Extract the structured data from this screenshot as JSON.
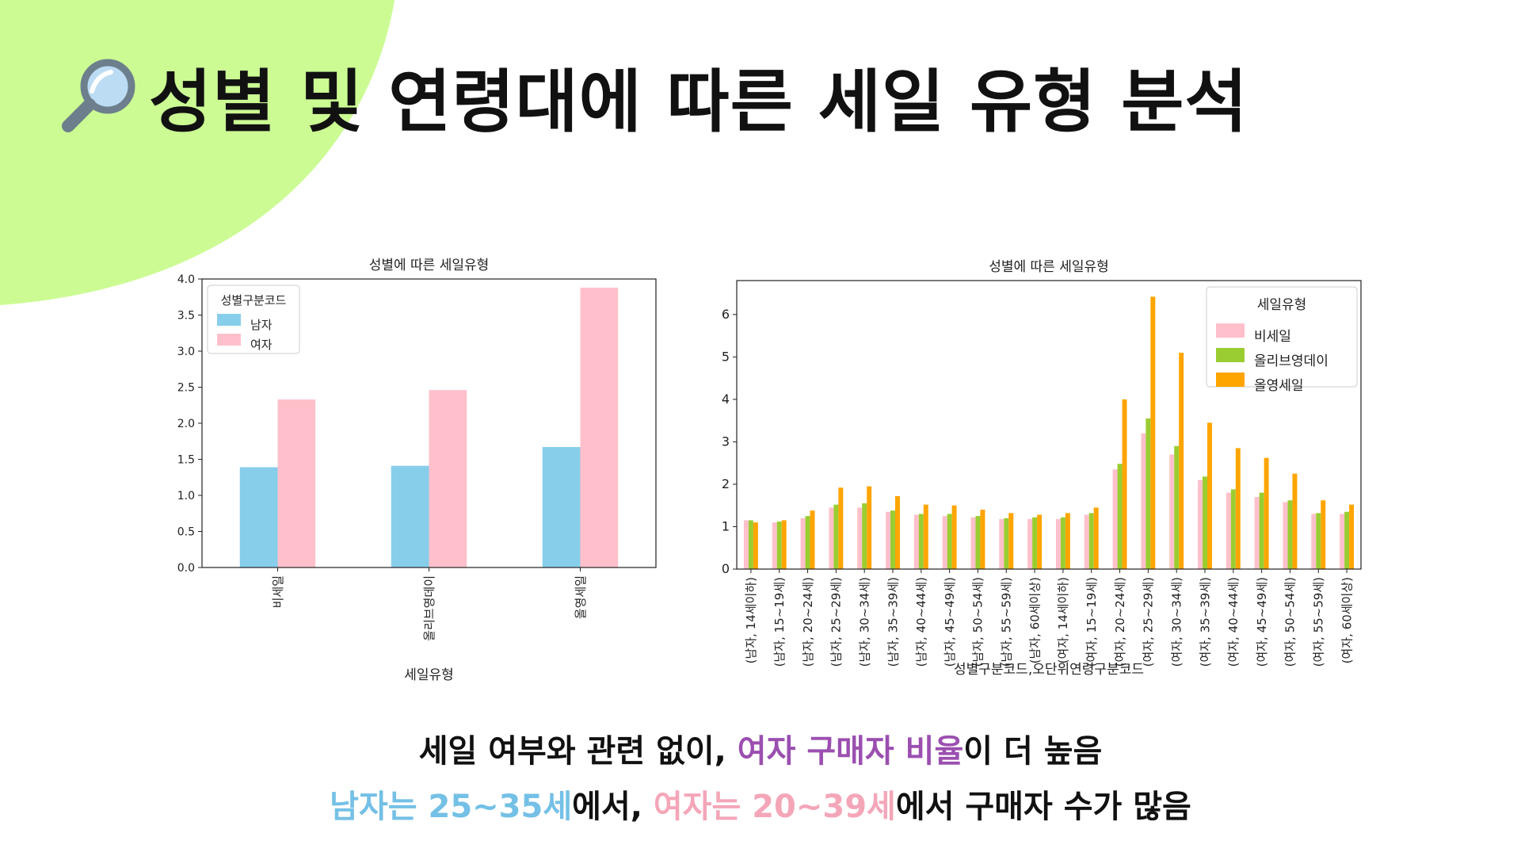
{
  "page": {
    "title": "성별 및 연령대에 따른 세일 유형 분석",
    "title_icon": "magnifier-icon",
    "accent_shape_color": "#ccfb94",
    "captions": [
      [
        {
          "text": "세일 여부와 관련 없이, ",
          "style": "normal"
        },
        {
          "text": "여자 구매자 비율",
          "style": "purple"
        },
        {
          "text": "이 더 높음",
          "style": "normal"
        }
      ],
      [
        {
          "text": "남자는 25~35세",
          "style": "blue"
        },
        {
          "text": "에서, ",
          "style": "normal"
        },
        {
          "text": "여자는 20~39세",
          "style": "pink"
        },
        {
          "text": "에서 구매자 수가 많음",
          "style": "normal"
        }
      ]
    ]
  },
  "chart_data": [
    {
      "type": "bar",
      "title": "성별에 따른 세일유형",
      "xlabel": "세일유형",
      "ylabel": "",
      "ylim": [
        0,
        4.0
      ],
      "yticks": [
        "0.0",
        "0.5",
        "1.0",
        "1.5",
        "2.0",
        "2.5",
        "3.0",
        "3.5",
        "4.0"
      ],
      "categories": [
        "비세일",
        "올리브영데이",
        "올영세일"
      ],
      "legend": {
        "title": "성별구분코드",
        "position": "top-left"
      },
      "series": [
        {
          "name": "남자",
          "color": "#87ceeb",
          "values": [
            1.39,
            1.41,
            1.67
          ]
        },
        {
          "name": "여자",
          "color": "#ffc0cb",
          "values": [
            2.33,
            2.46,
            3.88
          ]
        }
      ]
    },
    {
      "type": "bar",
      "title": "성별에 따른 세일유형",
      "xlabel": "성별구분코드,오단위연령구분코드",
      "ylabel": "",
      "ylim": [
        0,
        6.8
      ],
      "yticks": [
        "0",
        "1",
        "2",
        "3",
        "4",
        "5",
        "6"
      ],
      "legend": {
        "title": "세일유형",
        "position": "top-right"
      },
      "categories": [
        "(남자, 14세이하)",
        "(남자, 15~19세)",
        "(남자, 20~24세)",
        "(남자, 25~29세)",
        "(남자, 30~34세)",
        "(남자, 35~39세)",
        "(남자, 40~44세)",
        "(남자, 45~49세)",
        "(남자, 50~54세)",
        "(남자, 55~59세)",
        "(남자, 60세이상)",
        "(여자, 14세이하)",
        "(여자, 15~19세)",
        "(여자, 20~24세)",
        "(여자, 25~29세)",
        "(여자, 30~34세)",
        "(여자, 35~39세)",
        "(여자, 40~44세)",
        "(여자, 45~49세)",
        "(여자, 50~54세)",
        "(여자, 55~59세)",
        "(여자, 60세이상)"
      ],
      "series": [
        {
          "name": "비세일",
          "color": "#ffc0cb",
          "values": [
            1.15,
            1.1,
            1.2,
            1.45,
            1.45,
            1.35,
            1.28,
            1.25,
            1.22,
            1.18,
            1.18,
            1.18,
            1.28,
            2.35,
            3.2,
            2.7,
            2.1,
            1.8,
            1.7,
            1.58,
            1.3,
            1.3
          ]
        },
        {
          "name": "올리브영데이",
          "color": "#9acd32",
          "values": [
            1.15,
            1.12,
            1.25,
            1.52,
            1.55,
            1.38,
            1.3,
            1.3,
            1.25,
            1.2,
            1.22,
            1.22,
            1.32,
            2.48,
            3.55,
            2.9,
            2.18,
            1.88,
            1.8,
            1.62,
            1.32,
            1.35
          ]
        },
        {
          "name": "올영세일",
          "color": "#ffa500",
          "values": [
            1.1,
            1.15,
            1.38,
            1.92,
            1.95,
            1.72,
            1.52,
            1.5,
            1.4,
            1.32,
            1.28,
            1.32,
            1.45,
            4.0,
            6.42,
            5.1,
            3.45,
            2.85,
            2.62,
            2.25,
            1.62,
            1.52
          ]
        }
      ]
    }
  ]
}
